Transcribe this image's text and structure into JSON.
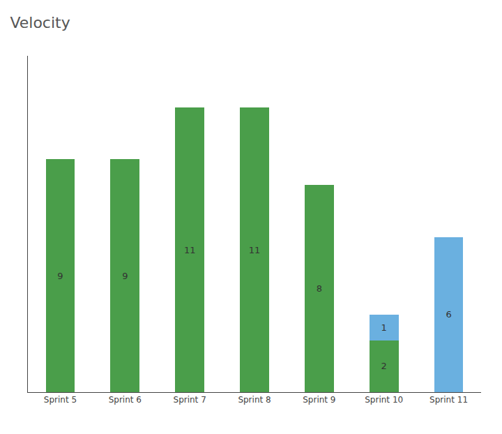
{
  "chart_data": {
    "type": "bar",
    "title": "Velocity",
    "categories": [
      "Sprint 5",
      "Sprint 6",
      "Sprint 7",
      "Sprint 8",
      "Sprint 9",
      "Sprint 10",
      "Sprint 11"
    ],
    "series": [
      {
        "color": "#4a9e4a",
        "values": [
          9,
          9,
          11,
          11,
          8,
          2,
          0
        ]
      },
      {
        "color": "#6ab0e0",
        "values": [
          0,
          0,
          0,
          0,
          0,
          1,
          6
        ]
      }
    ],
    "stacked": true,
    "ylim": [
      0,
      13
    ],
    "grid": false,
    "data_labels": true,
    "tick_labels": "x"
  }
}
